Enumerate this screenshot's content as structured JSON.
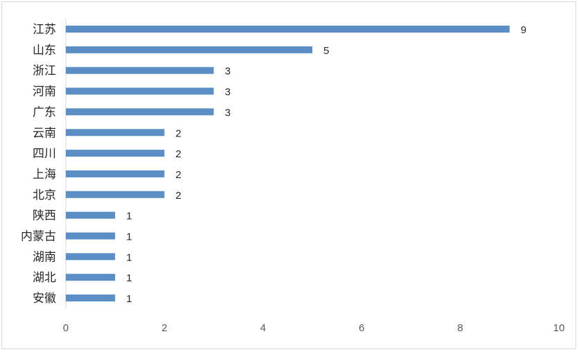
{
  "chart_data": {
    "type": "bar",
    "orientation": "horizontal",
    "categories": [
      "江苏",
      "山东",
      "浙江",
      "河南",
      "广东",
      "云南",
      "四川",
      "上海",
      "北京",
      "陕西",
      "内蒙古",
      "湖南",
      "湖北",
      "安徽"
    ],
    "values": [
      9,
      5,
      3,
      3,
      3,
      2,
      2,
      2,
      2,
      1,
      1,
      1,
      1,
      1
    ],
    "xlim": [
      0,
      10
    ],
    "xticks": [
      0,
      2,
      4,
      6,
      8,
      10
    ],
    "bar_color": "#5b8ec4",
    "grid": false,
    "title": "",
    "xlabel": "",
    "ylabel": ""
  }
}
